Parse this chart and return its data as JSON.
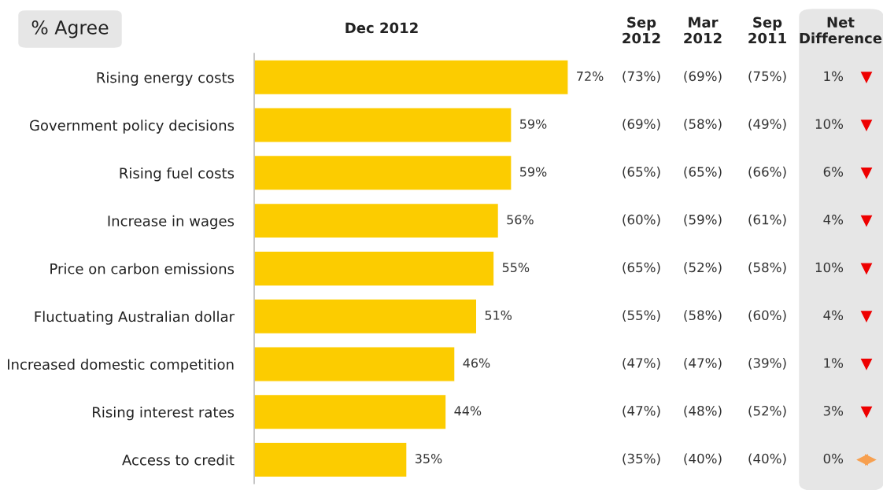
{
  "chart_data": {
    "type": "bar",
    "orientation": "horizontal",
    "title": "% Agree",
    "subtitle": "Dec 2012",
    "categories": [
      "Rising energy costs",
      "Government policy decisions",
      "Rising fuel costs",
      "Increase in wages",
      "Price on carbon emissions",
      "Fluctuating Australian dollar",
      "Increased domestic competition",
      "Rising interest rates",
      "Access to credit"
    ],
    "values": [
      72,
      59,
      59,
      56,
      55,
      51,
      46,
      44,
      35
    ],
    "value_labels": [
      "72%",
      "59%",
      "59%",
      "56%",
      "55%",
      "51%",
      "46%",
      "44%",
      "35%"
    ],
    "color": "#fccc00",
    "tick_labels": "y",
    "grid": false,
    "legend": false,
    "annotations": [
      "Sep\n2012",
      "Mar\n2012",
      "Sep\n2011",
      "Net\nDifference",
      "(73%)",
      "(69%)",
      "(75%)",
      "1%",
      "(69%)",
      "(58%)",
      "(49%)",
      "10%",
      "(65%)",
      "(65%)",
      "(66%)",
      "6%",
      "(60%)",
      "(59%)",
      "(61%)",
      "4%",
      "(65%)",
      "(52%)",
      "(58%)",
      "10%",
      "(55%)",
      "(58%)",
      "(60%)",
      "4%",
      "(47%)",
      "(47%)",
      "(39%)",
      "1%",
      "(47%)",
      "(48%)",
      "(52%)",
      "3%",
      "(35%)",
      "(40%)",
      "(40%)",
      "0%"
    ]
  }
}
